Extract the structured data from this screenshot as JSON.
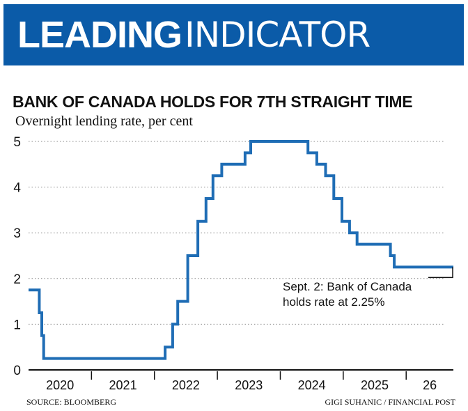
{
  "banner": {
    "bold": "LEADING",
    "light": "INDICATOR"
  },
  "source": "SOURCE: BLOOMBERG",
  "credit": "GIGI SUHANIC / FINANCIAL POST",
  "colors": {
    "banner": "#0b5ba8",
    "line": "#1f6db5",
    "grid": "#888888"
  },
  "chart_data": {
    "type": "line",
    "title": "BANK OF CANADA HOLDS FOR 7TH STRAIGHT TIME",
    "subtitle": "Overnight lending rate, per cent",
    "xlabel": "",
    "ylabel": "",
    "ylim": [
      0,
      5
    ],
    "y_ticks": [
      "0",
      "1",
      "2",
      "3",
      "4",
      "5"
    ],
    "x_ticks": [
      "2020",
      "2021",
      "2022",
      "2023",
      "2024",
      "2025",
      "26"
    ],
    "xlim": [
      2020.0,
      2026.75
    ],
    "grid": "horizontal dotted",
    "step": true,
    "series": [
      {
        "x": [
          2020.0,
          2020.17,
          2020.21,
          2020.24,
          2022.17,
          2022.29,
          2022.37,
          2022.53,
          2022.69,
          2022.82,
          2022.93,
          2023.07,
          2023.44,
          2023.53,
          2024.44,
          2024.58,
          2024.72,
          2024.85,
          2024.98,
          2025.1,
          2025.22,
          2025.75,
          2025.81,
          2026.75
        ],
        "values": [
          1.75,
          1.25,
          0.75,
          0.25,
          0.5,
          1.0,
          1.5,
          2.5,
          3.25,
          3.75,
          4.25,
          4.5,
          4.75,
          5.0,
          4.75,
          4.5,
          4.25,
          3.75,
          3.25,
          3.0,
          2.75,
          2.5,
          2.25,
          2.25
        ]
      }
    ],
    "annotation": {
      "line1": "Sept. 2: Bank of Canada",
      "line2": "holds rate at 2.25%",
      "at": [
        2026.75,
        2.25
      ]
    }
  }
}
